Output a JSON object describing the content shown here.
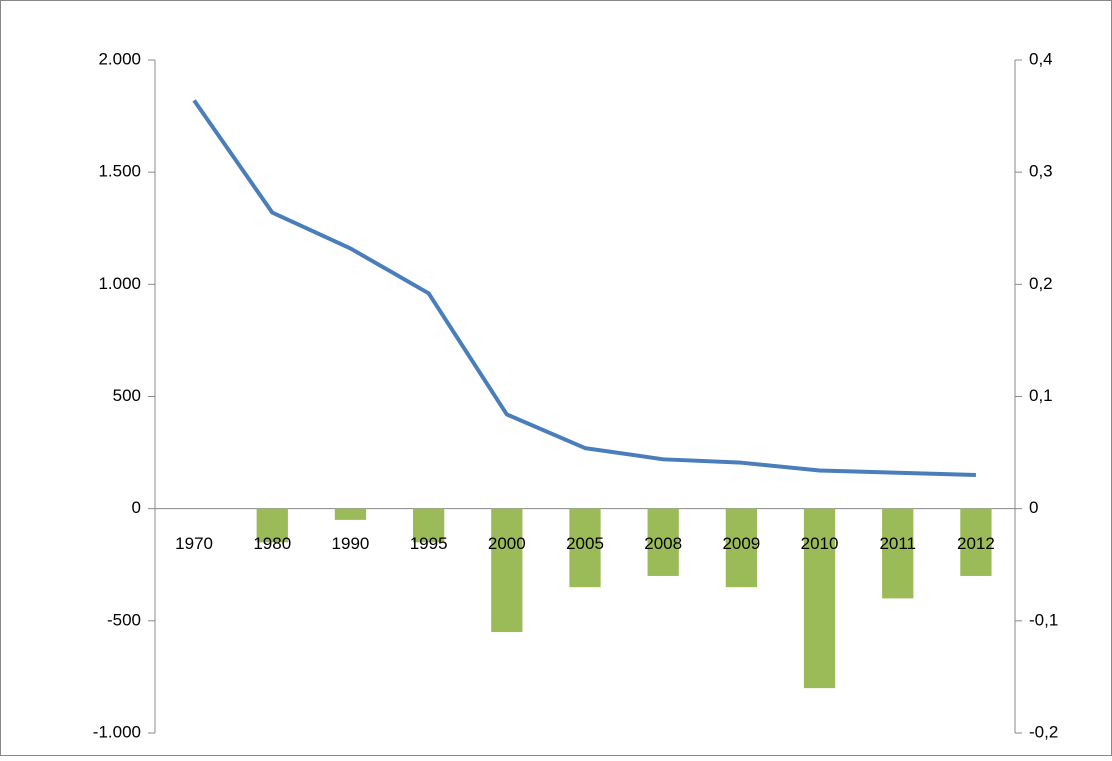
{
  "chart_data": {
    "type": "bar-line",
    "categories": [
      "1970",
      "1980",
      "1990",
      "1995",
      "2000",
      "2005",
      "2008",
      "2009",
      "2010",
      "2011",
      "2012"
    ],
    "series": [
      {
        "type": "line",
        "color": "#4a7ebb",
        "values": [
          1820,
          1320,
          1160,
          960,
          420,
          270,
          220,
          205,
          170,
          160,
          150
        ]
      },
      {
        "type": "bar",
        "axis": "y2",
        "color": "#9bbb59",
        "values": [
          null,
          -0.03,
          -0.01,
          -0.03,
          -0.11,
          -0.07,
          -0.06,
          -0.07,
          -0.16,
          -0.08,
          -0.06
        ]
      }
    ],
    "ylim": [
      -1000,
      2000
    ],
    "yticks": [
      {
        "value": -1000,
        "label": "-1.000"
      },
      -500,
      0,
      500,
      {
        "value": 1000,
        "label": "1.000"
      },
      {
        "value": 1500,
        "label": "1.500"
      },
      {
        "value": 2000,
        "label": "2.000"
      }
    ],
    "y2lim": [
      -0.2,
      0.4
    ],
    "y2ticks": [
      {
        "value": -0.2,
        "label": "-0,2"
      },
      {
        "value": -0.1,
        "label": "-0,1"
      },
      0,
      {
        "value": 0.1,
        "label": "0,1"
      },
      {
        "value": 0.2,
        "label": "0,2"
      },
      {
        "value": 0.3,
        "label": "0,3"
      },
      {
        "value": 0.4,
        "label": "0,4"
      }
    ]
  }
}
